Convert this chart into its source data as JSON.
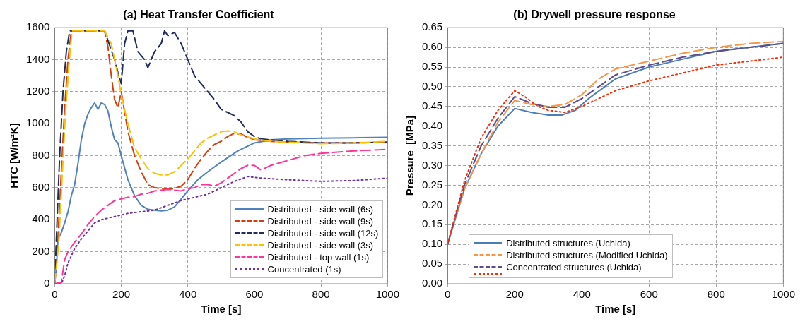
{
  "chart_data": [
    {
      "type": "line",
      "title": "(a) Heat Transfer Coefficient",
      "xlabel": "Time [s]",
      "ylabel": "HTC [W/m²K]",
      "xlim": [
        0,
        1000
      ],
      "xticks": [
        0,
        200,
        400,
        600,
        800,
        1000
      ],
      "ylim": [
        0,
        1600
      ],
      "yticks": [
        0,
        200,
        400,
        600,
        800,
        1000,
        1200,
        1400,
        1600
      ],
      "grid": true,
      "legend": "bottom right",
      "marker": "none",
      "series": [
        {
          "name": "Distributed - side wall (6s)",
          "color": "#4f81bd",
          "line_style": "solid",
          "x": [
            0,
            5,
            10,
            20,
            30,
            40,
            50,
            60,
            70,
            80,
            90,
            100,
            110,
            120,
            130,
            140,
            150,
            160,
            170,
            180,
            190,
            200,
            220,
            240,
            260,
            280,
            300,
            320,
            340,
            360,
            380,
            400,
            430,
            460,
            500,
            550,
            600,
            650,
            700,
            800,
            900,
            1000
          ],
          "values": [
            0,
            100,
            280,
            320,
            380,
            450,
            550,
            620,
            750,
            900,
            1000,
            1060,
            1100,
            1130,
            1090,
            1130,
            1120,
            1080,
            980,
            900,
            880,
            800,
            650,
            550,
            490,
            465,
            460,
            455,
            460,
            480,
            530,
            580,
            650,
            700,
            760,
            830,
            880,
            900,
            905,
            910,
            912,
            915
          ]
        },
        {
          "name": "Distributed - side wall (9s)",
          "color": "#d0410f",
          "line_style": "dashed",
          "x": [
            0,
            10,
            20,
            30,
            40,
            50,
            150,
            160,
            170,
            180,
            190,
            200,
            220,
            240,
            260,
            280,
            300,
            320,
            340,
            360,
            380,
            400,
            420,
            440,
            460,
            480,
            500,
            520,
            540,
            560,
            580,
            600,
            650,
            700,
            800,
            900,
            1000
          ],
          "values": [
            0,
            300,
            700,
            1100,
            1400,
            1580,
            1580,
            1480,
            1300,
            1150,
            1100,
            1200,
            950,
            800,
            700,
            620,
            600,
            595,
            590,
            595,
            610,
            650,
            720,
            780,
            830,
            870,
            890,
            920,
            940,
            935,
            915,
            900,
            890,
            885,
            880,
            880,
            885
          ]
        },
        {
          "name": "Distributed - side wall (12s)",
          "color": "#1f2d5c",
          "line_style": "dashed",
          "x": [
            0,
            5,
            15,
            25,
            35,
            45,
            150,
            160,
            180,
            190,
            200,
            210,
            220,
            235,
            250,
            270,
            280,
            300,
            320,
            330,
            340,
            360,
            380,
            390,
            400,
            420,
            440,
            460,
            480,
            500,
            540,
            560,
            580,
            600,
            620,
            700,
            800,
            900,
            1000
          ],
          "values": [
            0,
            280,
            800,
            1200,
            1450,
            1580,
            1580,
            1520,
            1400,
            1320,
            1250,
            1500,
            1580,
            1580,
            1450,
            1400,
            1350,
            1450,
            1500,
            1580,
            1550,
            1570,
            1500,
            1450,
            1400,
            1300,
            1250,
            1200,
            1150,
            1090,
            1050,
            1010,
            950,
            920,
            905,
            890,
            880,
            880,
            885
          ]
        },
        {
          "name": "Distributed - side wall (3s)",
          "color": "#ffc000",
          "line_style": "dashed",
          "x": [
            0,
            12,
            22,
            32,
            42,
            52,
            150,
            170,
            180,
            190,
            200,
            220,
            240,
            260,
            280,
            300,
            320,
            340,
            360,
            380,
            400,
            420,
            440,
            460,
            480,
            500,
            520,
            540,
            560,
            600,
            650,
            700,
            800,
            900,
            1000
          ],
          "values": [
            0,
            250,
            650,
            1050,
            1350,
            1580,
            1580,
            1500,
            1400,
            1300,
            1180,
            1000,
            850,
            780,
            720,
            690,
            680,
            680,
            700,
            740,
            780,
            830,
            880,
            910,
            930,
            950,
            955,
            950,
            930,
            905,
            890,
            885,
            875,
            880,
            890
          ]
        },
        {
          "name": "Distributed - top wall (1s)",
          "color": "#ff3399",
          "line_style": "dashed",
          "x": [
            0,
            20,
            30,
            40,
            60,
            80,
            100,
            120,
            140,
            160,
            180,
            200,
            220,
            240,
            260,
            280,
            300,
            340,
            380,
            400,
            420,
            440,
            460,
            480,
            500,
            520,
            540,
            560,
            580,
            600,
            620,
            650,
            700,
            750,
            800,
            900,
            1000
          ],
          "values": [
            0,
            10,
            150,
            200,
            260,
            310,
            370,
            420,
            460,
            490,
            520,
            530,
            540,
            545,
            560,
            565,
            580,
            590,
            580,
            595,
            600,
            620,
            620,
            610,
            630,
            660,
            690,
            720,
            740,
            740,
            710,
            740,
            770,
            800,
            815,
            830,
            840
          ]
        },
        {
          "name": "Concentrated (1s)",
          "color": "#7030a0",
          "line_style": "dotted",
          "x": [
            0,
            20,
            30,
            40,
            60,
            80,
            100,
            120,
            140,
            160,
            180,
            200,
            220,
            260,
            300,
            340,
            380,
            420,
            460,
            500,
            540,
            580,
            620,
            700,
            800,
            900,
            1000
          ],
          "values": [
            0,
            0,
            50,
            130,
            220,
            280,
            330,
            380,
            400,
            410,
            420,
            430,
            440,
            450,
            460,
            490,
            520,
            540,
            560,
            600,
            640,
            670,
            660,
            650,
            640,
            645,
            660
          ]
        }
      ]
    },
    {
      "type": "line",
      "title": "(b) Drywell pressure response",
      "xlabel": "Time [s]",
      "ylabel": "Pressure  [MPa]",
      "xlim": [
        0,
        1000
      ],
      "xticks": [
        0,
        200,
        400,
        600,
        800,
        1000
      ],
      "ylim": [
        0,
        0.65
      ],
      "yticks": [
        {
          "value": 0,
          "label": "0.00"
        },
        {
          "value": 0.05,
          "label": "0.05"
        },
        {
          "value": 0.1,
          "label": "0.10"
        },
        {
          "value": 0.15,
          "label": "0.15"
        },
        {
          "value": 0.2,
          "label": "0.20"
        },
        {
          "value": 0.25,
          "label": "0.25"
        },
        {
          "value": 0.3,
          "label": "0.30"
        },
        {
          "value": 0.35,
          "label": "0.35"
        },
        {
          "value": 0.4,
          "label": "0.40"
        },
        {
          "value": 0.45,
          "label": "0.45"
        },
        {
          "value": 0.5,
          "label": "0.50"
        },
        {
          "value": 0.55,
          "label": "0.55"
        },
        {
          "value": 0.6,
          "label": "0.60"
        },
        {
          "value": 0.65,
          "label": "0.65"
        }
      ],
      "grid": true,
      "legend": "bottom",
      "marker": "none",
      "series": [
        {
          "name": "Distributed structures (Uchida)",
          "color": "#4a7ebb",
          "line_style": "solid",
          "x": [
            0,
            25,
            50,
            100,
            150,
            200,
            250,
            300,
            340,
            380,
            420,
            500,
            600,
            700,
            800,
            900,
            1000
          ],
          "values": [
            0.1,
            0.17,
            0.24,
            0.33,
            0.4,
            0.445,
            0.435,
            0.428,
            0.428,
            0.44,
            0.47,
            0.52,
            0.55,
            0.57,
            0.59,
            0.6,
            0.61
          ]
        },
        {
          "name": "Distributed structures (Modified Uchida)",
          "color": "#f79646",
          "line_style": "dashed",
          "x": [
            0,
            50,
            100,
            150,
            200,
            250,
            300,
            350,
            400,
            450,
            500,
            600,
            700,
            800,
            900,
            1000
          ],
          "values": [
            0.1,
            0.24,
            0.33,
            0.41,
            0.465,
            0.455,
            0.45,
            0.455,
            0.48,
            0.52,
            0.545,
            0.565,
            0.585,
            0.6,
            0.61,
            0.615
          ]
        },
        {
          "name": "Concentrated structures (Uchida)",
          "color": "#5f4b8b",
          "line_style": "dashed",
          "x": [
            0,
            50,
            100,
            150,
            200,
            250,
            300,
            350,
            400,
            450,
            500,
            600,
            700,
            800,
            900,
            1000
          ],
          "values": [
            0.1,
            0.25,
            0.35,
            0.42,
            0.475,
            0.458,
            0.448,
            0.448,
            0.47,
            0.5,
            0.53,
            0.555,
            0.575,
            0.59,
            0.6,
            0.61
          ]
        },
        {
          "color": "#ff2a00",
          "line_style": "dotted",
          "x": [
            0,
            50,
            100,
            150,
            200,
            230,
            270,
            300,
            350,
            400,
            450,
            500,
            600,
            700,
            800,
            900,
            1000
          ],
          "values": [
            0.1,
            0.26,
            0.37,
            0.44,
            0.49,
            0.475,
            0.45,
            0.44,
            0.435,
            0.45,
            0.47,
            0.49,
            0.515,
            0.535,
            0.555,
            0.565,
            0.575
          ]
        }
      ]
    }
  ]
}
